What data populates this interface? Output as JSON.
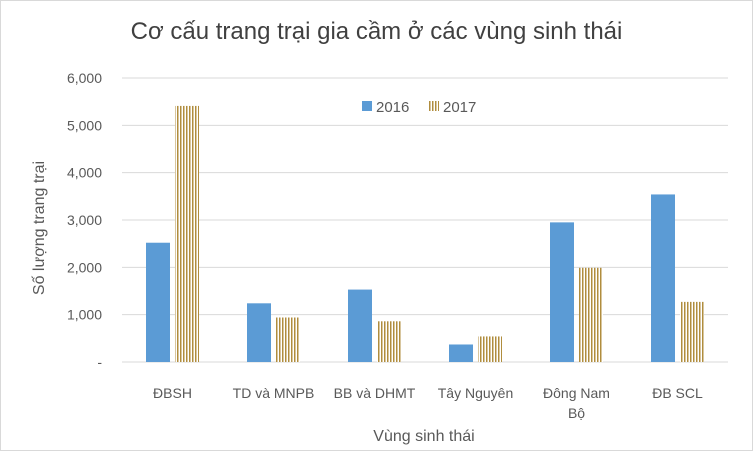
{
  "chart_data": {
    "type": "bar",
    "title": "Cơ cấu trang trại gia cầm ở các vùng sinh thái",
    "xlabel": "Vùng sinh thái",
    "ylabel": "Số lượng trang trại",
    "categories": [
      [
        "ĐBSH"
      ],
      [
        "TD và MNPB"
      ],
      [
        "BB và DHMT"
      ],
      [
        "Tây Nguyên"
      ],
      [
        "Đông Nam",
        "Bộ"
      ],
      [
        "ĐB SCL"
      ]
    ],
    "series": [
      {
        "name": "2016",
        "values": [
          2520,
          1240,
          1530,
          370,
          2950,
          3540
        ],
        "color": "#5b9bd5"
      },
      {
        "name": "2017",
        "values": [
          5410,
          940,
          860,
          540,
          1990,
          1270
        ],
        "color": "#b08d3e"
      }
    ],
    "ylim": [
      0,
      6000
    ],
    "yticks": [
      "-",
      "1,000",
      "2,000",
      "3,000",
      "4,000",
      "5,000",
      "6,000"
    ],
    "grid": true,
    "legend": "top"
  }
}
